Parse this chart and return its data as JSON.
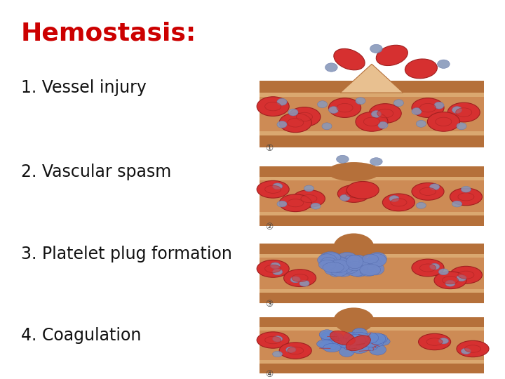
{
  "title": "Hemostasis:",
  "title_color": "#cc0000",
  "title_fontsize": 26,
  "background_color": "#ffffff",
  "steps": [
    {
      "label": "①",
      "text": "1. Vessel injury"
    },
    {
      "label": "②",
      "text": "2. Vascular spasm"
    },
    {
      "label": "③",
      "text": "3. Platelet plug formation"
    },
    {
      "label": "④",
      "text": "4. Coagulation"
    }
  ],
  "text_fontsize": 17,
  "vessel_fill": "#cd8b55",
  "vessel_wall_color": "#b5703a",
  "vessel_inner_color": "#daa870",
  "rbc_color": "#d63030",
  "rbc_edge": "#a02020",
  "platelet_color": "#8899bb",
  "platelet_edge": "#6677aa",
  "label_fontsize": 9
}
